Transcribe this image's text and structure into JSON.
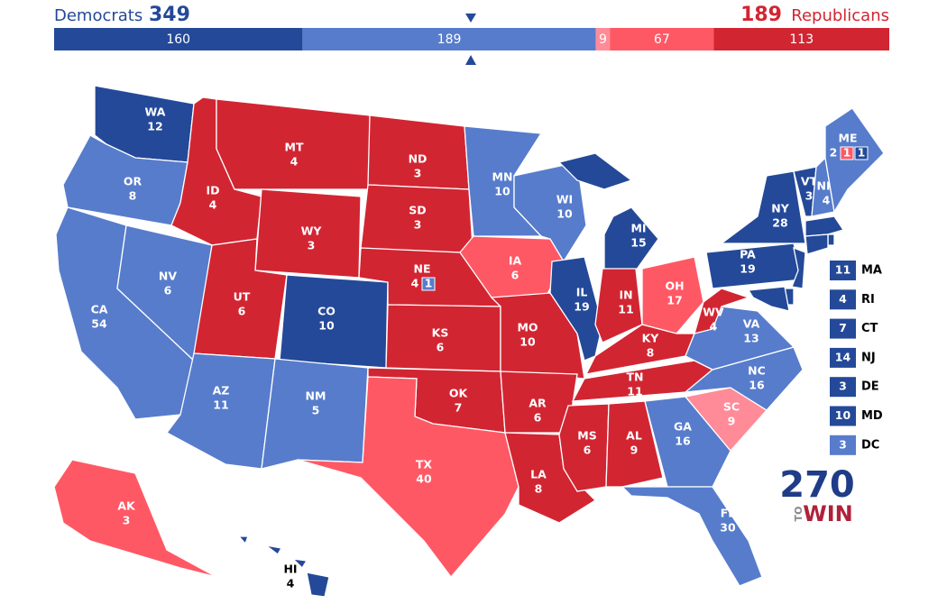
{
  "header": {
    "dem_label": "Democrats",
    "dem_total": 349,
    "rep_total": 189,
    "rep_label": "Republicans"
  },
  "bar": [
    {
      "value": 160,
      "color": "#244999"
    },
    {
      "value": 189,
      "color": "#577ccc"
    },
    {
      "value": 9,
      "color": "#ff8b98"
    },
    {
      "value": 67,
      "color": "#ff5865"
    },
    {
      "value": 113,
      "color": "#d22532"
    }
  ],
  "states": [
    {
      "abbr": "WA",
      "ev": 12,
      "color": "#244999"
    },
    {
      "abbr": "OR",
      "ev": 8,
      "color": "#577ccc"
    },
    {
      "abbr": "CA",
      "ev": 54,
      "color": "#577ccc"
    },
    {
      "abbr": "NV",
      "ev": 6,
      "color": "#577ccc"
    },
    {
      "abbr": "ID",
      "ev": 4,
      "color": "#d22532"
    },
    {
      "abbr": "MT",
      "ev": 4,
      "color": "#d22532"
    },
    {
      "abbr": "WY",
      "ev": 3,
      "color": "#d22532"
    },
    {
      "abbr": "UT",
      "ev": 6,
      "color": "#d22532"
    },
    {
      "abbr": "AZ",
      "ev": 11,
      "color": "#577ccc"
    },
    {
      "abbr": "CO",
      "ev": 10,
      "color": "#244999"
    },
    {
      "abbr": "NM",
      "ev": 5,
      "color": "#577ccc"
    },
    {
      "abbr": "ND",
      "ev": 3,
      "color": "#d22532"
    },
    {
      "abbr": "SD",
      "ev": 3,
      "color": "#d22532"
    },
    {
      "abbr": "NE",
      "ev": 4,
      "color": "#d22532",
      "districts": [
        {
          "ev": 1,
          "color": "#577ccc"
        }
      ]
    },
    {
      "abbr": "KS",
      "ev": 6,
      "color": "#d22532"
    },
    {
      "abbr": "OK",
      "ev": 7,
      "color": "#d22532"
    },
    {
      "abbr": "TX",
      "ev": 40,
      "color": "#ff5865"
    },
    {
      "abbr": "MN",
      "ev": 10,
      "color": "#577ccc"
    },
    {
      "abbr": "IA",
      "ev": 6,
      "color": "#ff5865"
    },
    {
      "abbr": "MO",
      "ev": 10,
      "color": "#d22532"
    },
    {
      "abbr": "AR",
      "ev": 6,
      "color": "#d22532"
    },
    {
      "abbr": "LA",
      "ev": 8,
      "color": "#d22532"
    },
    {
      "abbr": "WI",
      "ev": 10,
      "color": "#577ccc"
    },
    {
      "abbr": "IL",
      "ev": 19,
      "color": "#244999"
    },
    {
      "abbr": "MI",
      "ev": 15,
      "color": "#244999"
    },
    {
      "abbr": "IN",
      "ev": 11,
      "color": "#d22532"
    },
    {
      "abbr": "OH",
      "ev": 17,
      "color": "#ff5865"
    },
    {
      "abbr": "KY",
      "ev": 8,
      "color": "#d22532"
    },
    {
      "abbr": "TN",
      "ev": 11,
      "color": "#d22532"
    },
    {
      "abbr": "MS",
      "ev": 6,
      "color": "#d22532"
    },
    {
      "abbr": "AL",
      "ev": 9,
      "color": "#d22532"
    },
    {
      "abbr": "GA",
      "ev": 16,
      "color": "#577ccc"
    },
    {
      "abbr": "FL",
      "ev": 30,
      "color": "#577ccc"
    },
    {
      "abbr": "SC",
      "ev": 9,
      "color": "#ff8b98"
    },
    {
      "abbr": "NC",
      "ev": 16,
      "color": "#577ccc"
    },
    {
      "abbr": "VA",
      "ev": 13,
      "color": "#577ccc"
    },
    {
      "abbr": "WV",
      "ev": 4,
      "color": "#d22532"
    },
    {
      "abbr": "PA",
      "ev": 19,
      "color": "#244999"
    },
    {
      "abbr": "NY",
      "ev": 28,
      "color": "#244999"
    },
    {
      "abbr": "VT",
      "ev": 3,
      "color": "#244999"
    },
    {
      "abbr": "NH",
      "ev": 4,
      "color": "#577ccc"
    },
    {
      "abbr": "ME",
      "ev": 2,
      "color": "#577ccc",
      "districts": [
        {
          "ev": 1,
          "color": "#ff5865"
        },
        {
          "ev": 1,
          "color": "#244999"
        }
      ]
    },
    {
      "abbr": "AK",
      "ev": 3,
      "color": "#ff5865"
    },
    {
      "abbr": "HI",
      "ev": 4,
      "color": "#244999"
    }
  ],
  "side_boxes": [
    {
      "ev": 11,
      "abbr": "MA",
      "color": "#244999"
    },
    {
      "ev": 4,
      "abbr": "RI",
      "color": "#244999"
    },
    {
      "ev": 7,
      "abbr": "CT",
      "color": "#244999"
    },
    {
      "ev": 14,
      "abbr": "NJ",
      "color": "#244999"
    },
    {
      "ev": 3,
      "abbr": "DE",
      "color": "#244999"
    },
    {
      "ev": 10,
      "abbr": "MD",
      "color": "#244999"
    },
    {
      "ev": 3,
      "abbr": "DC",
      "color": "#577ccc"
    }
  ],
  "logo": {
    "number": "270",
    "to": "TO",
    "win": "WIN"
  }
}
